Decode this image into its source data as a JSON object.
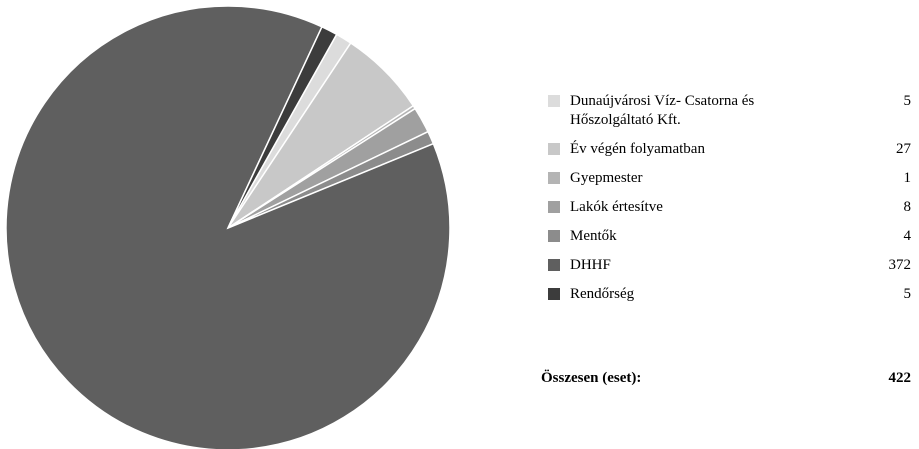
{
  "chart_data": {
    "type": "pie",
    "categories": [
      "Dunaújvárosi Víz- Csatorna és Hőszolgáltató Kft.",
      "Év végén folyamatban",
      "Gyepmester",
      "Lakók értesítve",
      "Mentők",
      "DHHF",
      "Rendőrség"
    ],
    "values": [
      5,
      27,
      1,
      8,
      4,
      372,
      5
    ],
    "colors": [
      "#dcdcdc",
      "#c8c8c8",
      "#b4b4b4",
      "#a0a0a0",
      "#8c8c8c",
      "#5f5f5f",
      "#3c3c3c"
    ],
    "total_label": "Összesen (eset):",
    "total": 422
  }
}
